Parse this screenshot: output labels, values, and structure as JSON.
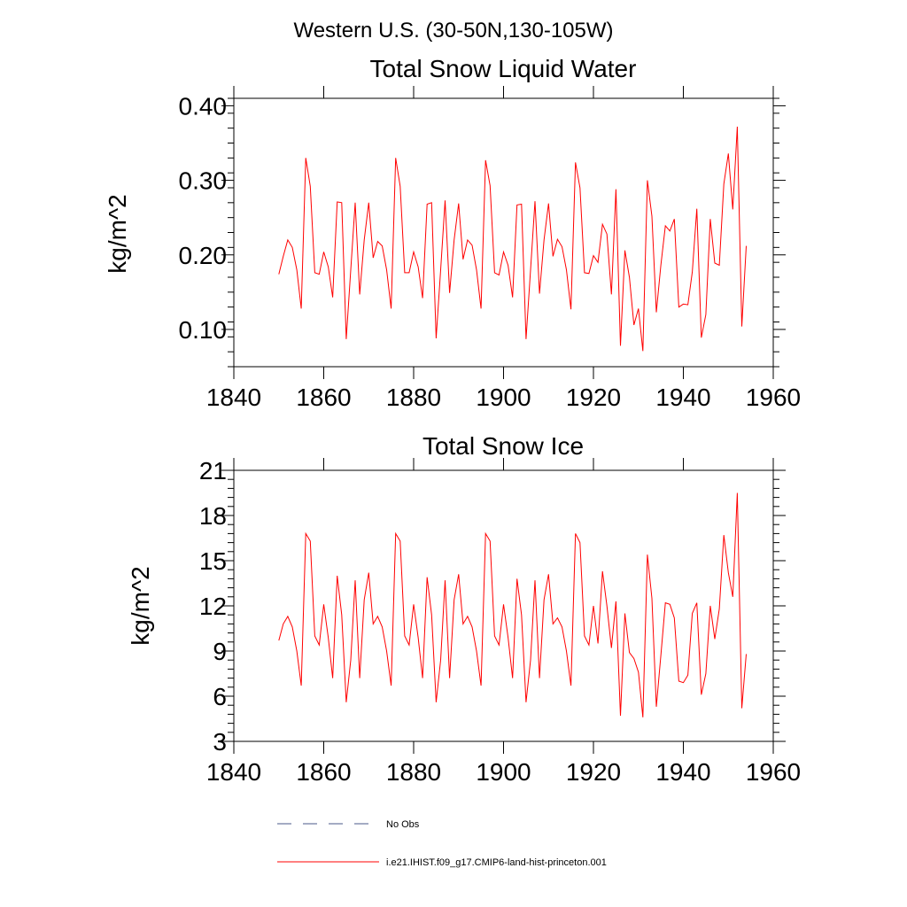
{
  "figure": {
    "suptitle": "Western U.S. (30-50N,130-105W)"
  },
  "chart_data": [
    {
      "type": "line",
      "title": "Total Snow Liquid Water",
      "xlabel": "",
      "ylabel": "kg/m^2",
      "xlim": [
        1840,
        1960
      ],
      "ylim": [
        0.05,
        0.41
      ],
      "xticks": [
        1840,
        1860,
        1880,
        1900,
        1920,
        1940,
        1960
      ],
      "xtick_labels": [
        "1840",
        "1860",
        "1880",
        "1900",
        "1920",
        "1940",
        "1960"
      ],
      "yticks": [
        0.1,
        0.2,
        0.3,
        0.4
      ],
      "ytick_labels": [
        "0.10",
        "0.20",
        "0.30",
        "0.40"
      ],
      "grid": false,
      "series": [
        {
          "name": "i.e21.IHIST.f09_g17.CMIP6-land-hist-princeton.001",
          "color": "#ff0000",
          "x": [
            1850,
            1851,
            1852,
            1853,
            1854,
            1855,
            1856,
            1857,
            1858,
            1859,
            1860,
            1861,
            1862,
            1863,
            1864,
            1865,
            1866,
            1867,
            1868,
            1869,
            1870,
            1871,
            1872,
            1873,
            1874,
            1875,
            1876,
            1877,
            1878,
            1879,
            1880,
            1881,
            1882,
            1883,
            1884,
            1885,
            1886,
            1887,
            1888,
            1889,
            1890,
            1891,
            1892,
            1893,
            1894,
            1895,
            1896,
            1897,
            1898,
            1899,
            1900,
            1901,
            1902,
            1903,
            1904,
            1905,
            1906,
            1907,
            1908,
            1909,
            1910,
            1911,
            1912,
            1913,
            1914,
            1915,
            1916,
            1917,
            1918,
            1919,
            1920,
            1921,
            1922,
            1923,
            1924,
            1925,
            1926,
            1927,
            1928,
            1929,
            1930,
            1931,
            1932,
            1933,
            1934,
            1935,
            1936,
            1937,
            1938,
            1939,
            1940,
            1941,
            1942,
            1943,
            1944,
            1945,
            1946,
            1947,
            1948,
            1949,
            1950,
            1951,
            1952,
            1953,
            1954
          ],
          "y": [
            0.174,
            0.198,
            0.22,
            0.21,
            0.18,
            0.128,
            0.33,
            0.292,
            0.176,
            0.174,
            0.204,
            0.184,
            0.143,
            0.271,
            0.27,
            0.087,
            0.18,
            0.27,
            0.147,
            0.22,
            0.27,
            0.196,
            0.218,
            0.212,
            0.18,
            0.128,
            0.33,
            0.292,
            0.176,
            0.176,
            0.204,
            0.184,
            0.142,
            0.268,
            0.27,
            0.088,
            0.18,
            0.273,
            0.149,
            0.22,
            0.269,
            0.194,
            0.22,
            0.213,
            0.18,
            0.128,
            0.327,
            0.293,
            0.176,
            0.173,
            0.204,
            0.186,
            0.143,
            0.267,
            0.268,
            0.087,
            0.18,
            0.272,
            0.148,
            0.22,
            0.269,
            0.198,
            0.221,
            0.211,
            0.18,
            0.127,
            0.324,
            0.29,
            0.176,
            0.175,
            0.199,
            0.19,
            0.241,
            0.228,
            0.147,
            0.288,
            0.078,
            0.206,
            0.17,
            0.106,
            0.128,
            0.071,
            0.3,
            0.252,
            0.123,
            0.186,
            0.239,
            0.232,
            0.248,
            0.13,
            0.134,
            0.133,
            0.177,
            0.262,
            0.089,
            0.12,
            0.248,
            0.189,
            0.186,
            0.295,
            0.336,
            0.261,
            0.372,
            0.104,
            0.212
          ]
        }
      ]
    },
    {
      "type": "line",
      "title": "Total Snow Ice",
      "xlabel": "",
      "ylabel": "kg/m^2",
      "xlim": [
        1840,
        1960
      ],
      "ylim": [
        3,
        21
      ],
      "xticks": [
        1840,
        1860,
        1880,
        1900,
        1920,
        1940,
        1960
      ],
      "xtick_labels": [
        "1840",
        "1860",
        "1880",
        "1900",
        "1920",
        "1940",
        "1960"
      ],
      "yticks": [
        3,
        6,
        9,
        12,
        15,
        18,
        21
      ],
      "ytick_labels": [
        "3",
        "6",
        "9",
        "12",
        "15",
        "18",
        "21"
      ],
      "grid": false,
      "series": [
        {
          "name": "i.e21.IHIST.f09_g17.CMIP6-land-hist-princeton.001",
          "color": "#ff0000",
          "x": [
            1850,
            1851,
            1852,
            1853,
            1854,
            1855,
            1856,
            1857,
            1858,
            1859,
            1860,
            1861,
            1862,
            1863,
            1864,
            1865,
            1866,
            1867,
            1868,
            1869,
            1870,
            1871,
            1872,
            1873,
            1874,
            1875,
            1876,
            1877,
            1878,
            1879,
            1880,
            1881,
            1882,
            1883,
            1884,
            1885,
            1886,
            1887,
            1888,
            1889,
            1890,
            1891,
            1892,
            1893,
            1894,
            1895,
            1896,
            1897,
            1898,
            1899,
            1900,
            1901,
            1902,
            1903,
            1904,
            1905,
            1906,
            1907,
            1908,
            1909,
            1910,
            1911,
            1912,
            1913,
            1914,
            1915,
            1916,
            1917,
            1918,
            1919,
            1920,
            1921,
            1922,
            1923,
            1924,
            1925,
            1926,
            1927,
            1928,
            1929,
            1930,
            1931,
            1932,
            1933,
            1934,
            1935,
            1936,
            1937,
            1938,
            1939,
            1940,
            1941,
            1942,
            1943,
            1944,
            1945,
            1946,
            1947,
            1948,
            1949,
            1950,
            1951,
            1952,
            1953,
            1954
          ],
          "y": [
            9.7,
            10.8,
            11.3,
            10.6,
            9.0,
            6.7,
            16.8,
            16.3,
            10.0,
            9.4,
            12.1,
            9.9,
            7.2,
            14.0,
            11.4,
            5.6,
            8.4,
            13.7,
            7.2,
            12.4,
            14.2,
            10.8,
            11.3,
            10.6,
            9.0,
            6.7,
            16.8,
            16.3,
            10.0,
            9.4,
            12.1,
            9.9,
            7.2,
            13.9,
            11.4,
            5.6,
            8.4,
            13.7,
            7.2,
            12.4,
            14.1,
            10.8,
            11.3,
            10.6,
            9.0,
            6.7,
            16.8,
            16.3,
            10.0,
            9.4,
            12.1,
            9.9,
            7.2,
            13.8,
            11.4,
            5.6,
            8.4,
            13.7,
            7.2,
            12.4,
            14.1,
            10.8,
            11.2,
            10.6,
            9.0,
            6.7,
            16.8,
            16.2,
            10.0,
            9.4,
            12.0,
            9.5,
            14.3,
            12.0,
            9.2,
            12.3,
            4.7,
            11.5,
            8.9,
            8.5,
            7.6,
            4.6,
            15.4,
            12.5,
            5.3,
            8.7,
            12.2,
            12.1,
            11.2,
            7.0,
            6.9,
            7.4,
            11.5,
            12.2,
            6.1,
            7.5,
            12.0,
            9.8,
            11.8,
            16.7,
            14.2,
            12.6,
            19.5,
            5.2,
            8.8
          ]
        }
      ]
    }
  ],
  "legend": [
    {
      "label": "No Obs",
      "color": "#4a5a8a",
      "style": "dashed"
    },
    {
      "label": "i.e21.IHIST.f09_g17.CMIP6-land-hist-princeton.001",
      "color": "#ff0000",
      "style": "solid"
    }
  ]
}
